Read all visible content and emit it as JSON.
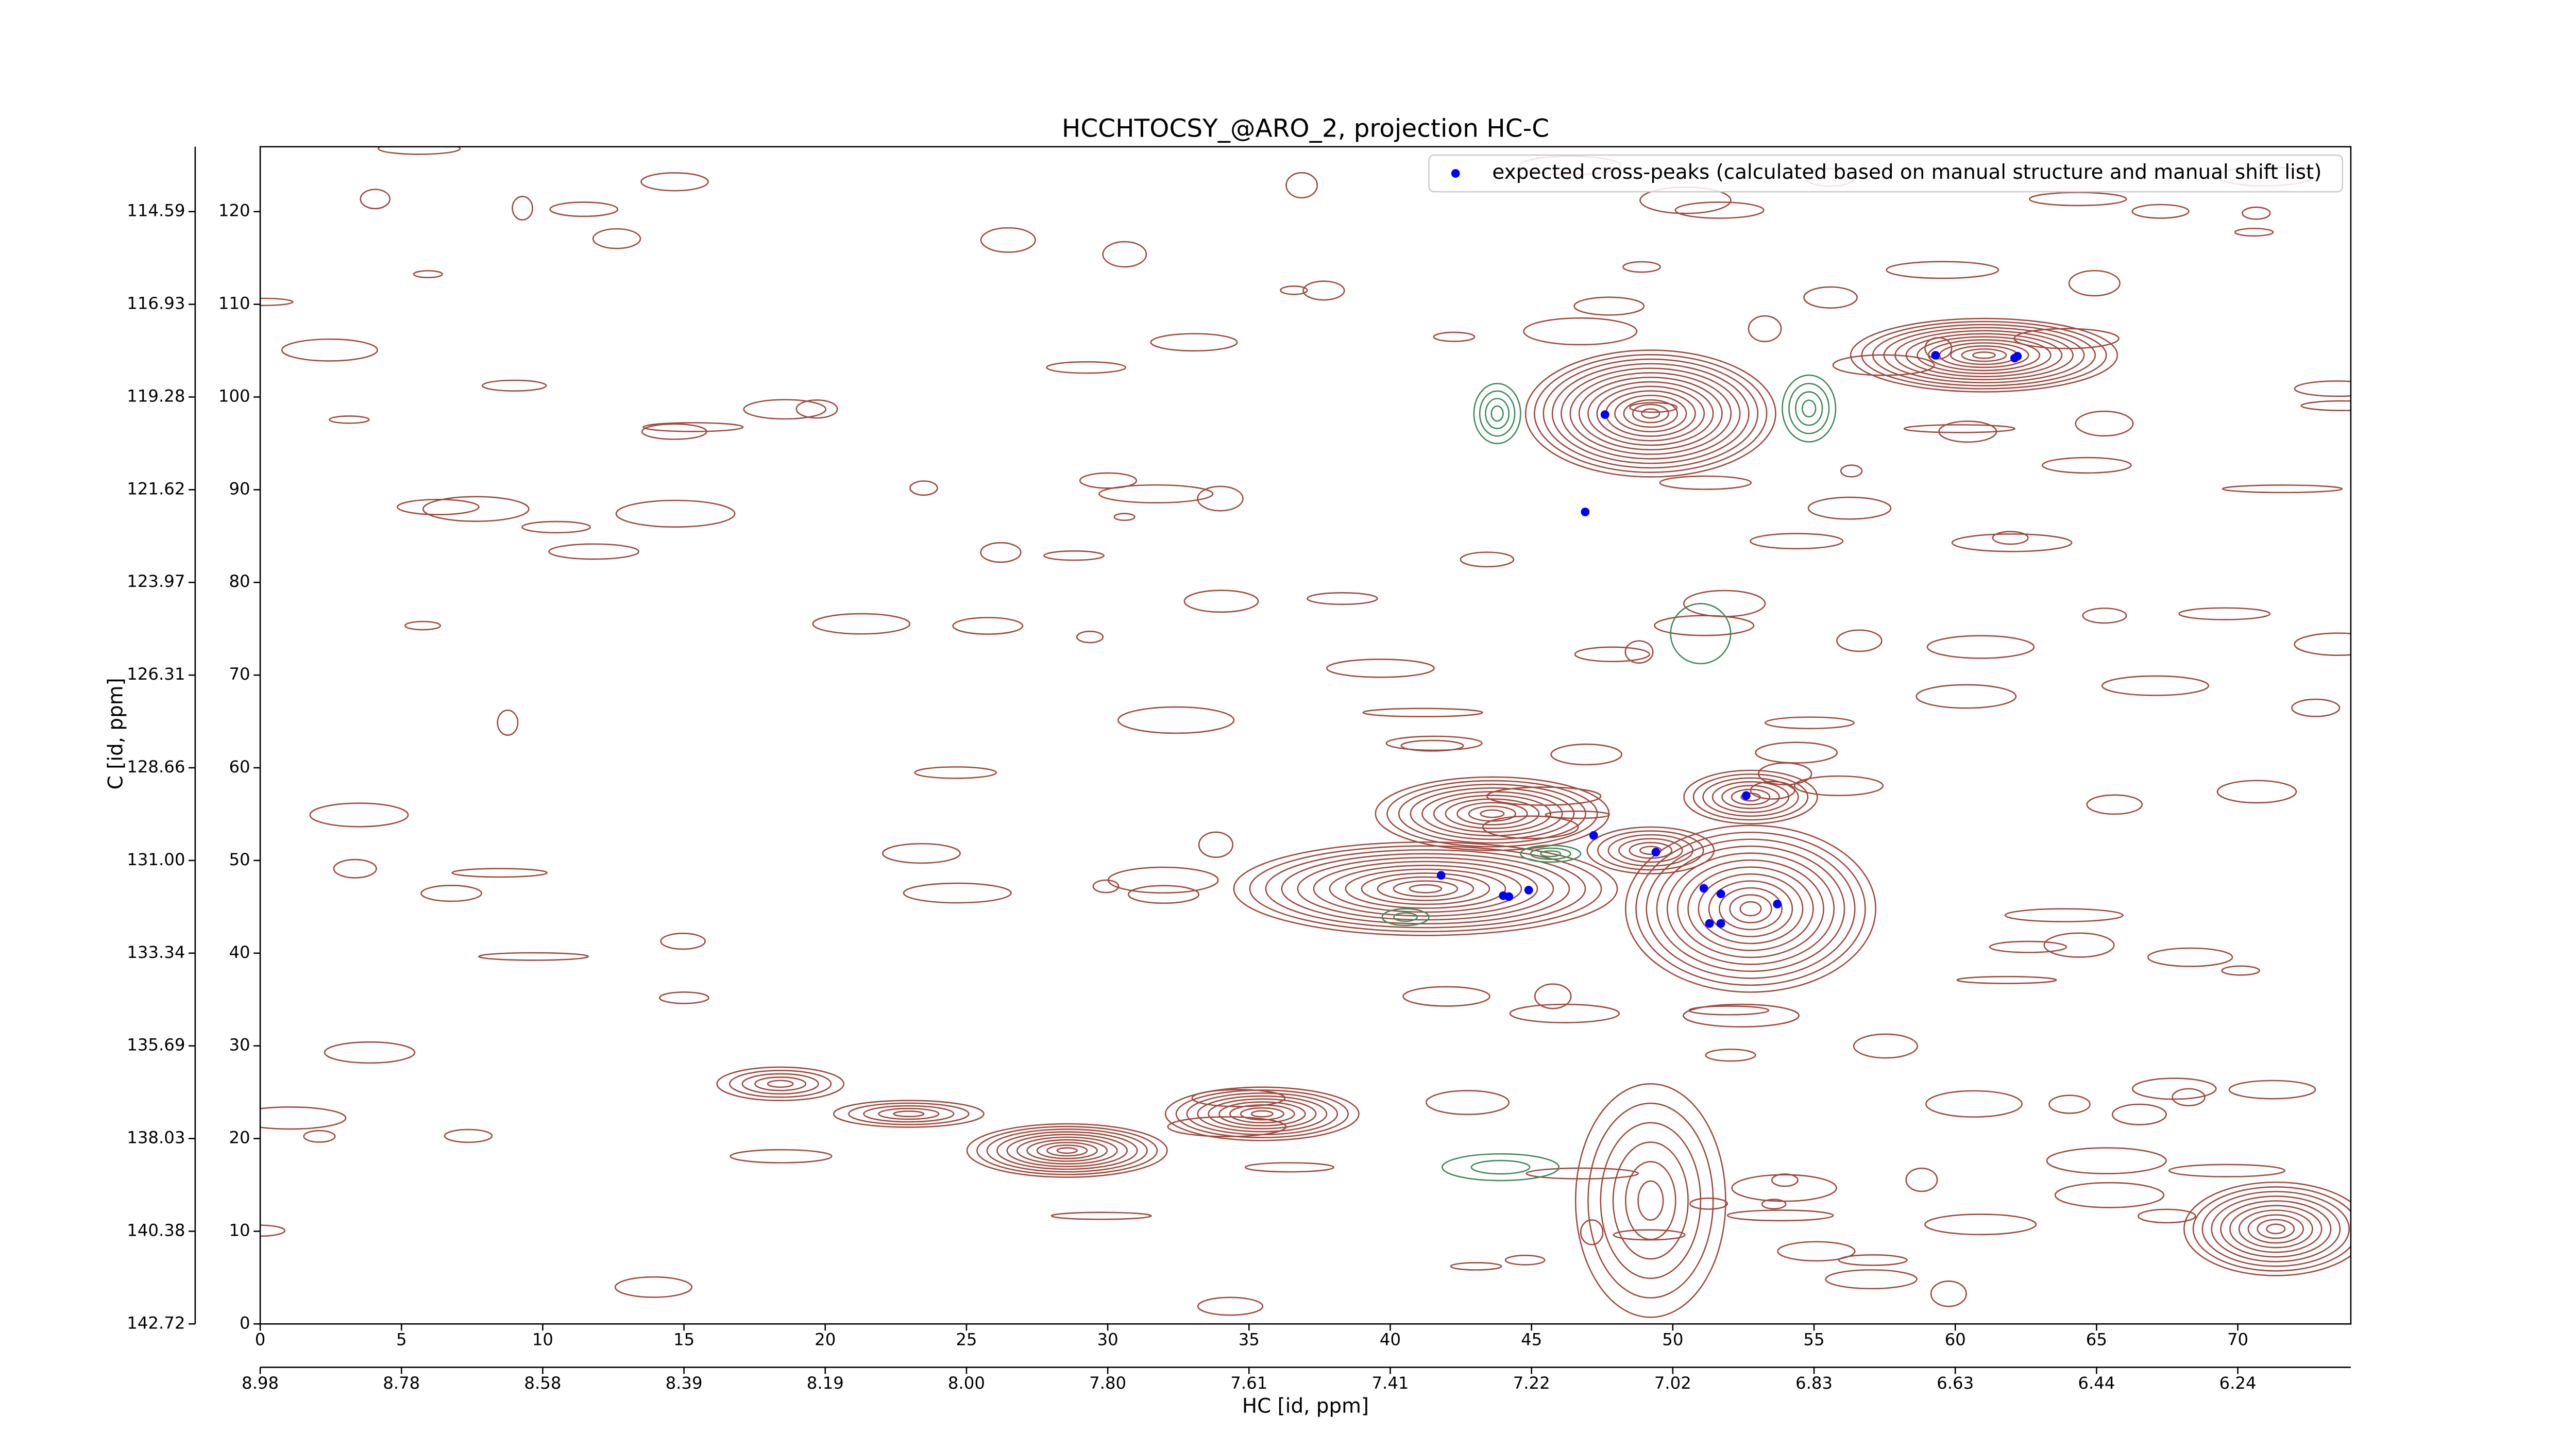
{
  "chart_data": {
    "type": "scatter",
    "title": "HCCHTOCSY_@ARO_2, projection HC-C",
    "xlabel": "HC [id, ppm]",
    "ylabel": "C [id, ppm]",
    "xlim": [
      0,
      74
    ],
    "ylim": [
      0,
      127
    ],
    "xticks": [
      0,
      5,
      10,
      15,
      20,
      25,
      30,
      35,
      40,
      45,
      50,
      55,
      60,
      65,
      70
    ],
    "yticks": [
      0,
      10,
      20,
      30,
      40,
      50,
      60,
      70,
      80,
      90,
      100,
      110,
      120
    ],
    "x2ticks": [
      {
        "value": 0,
        "label": "8.98"
      },
      {
        "value": 5,
        "label": "8.78"
      },
      {
        "value": 10,
        "label": "8.58"
      },
      {
        "value": 15,
        "label": "8.39"
      },
      {
        "value": 20,
        "label": "8.19"
      },
      {
        "value": 25,
        "label": "8.00"
      },
      {
        "value": 30,
        "label": "7.80"
      },
      {
        "value": 35,
        "label": "7.61"
      },
      {
        "value": 40,
        "label": "7.41"
      },
      {
        "value": 45,
        "label": "7.22"
      },
      {
        "value": 50,
        "label": "7.02"
      },
      {
        "value": 55,
        "label": "6.83"
      },
      {
        "value": 60,
        "label": "6.63"
      },
      {
        "value": 65,
        "label": "6.44"
      },
      {
        "value": 70,
        "label": "6.24"
      }
    ],
    "y2ticks": [
      {
        "value": 0,
        "label": "142.72"
      },
      {
        "value": 10,
        "label": "140.38"
      },
      {
        "value": 20,
        "label": "138.03"
      },
      {
        "value": 30,
        "label": "135.69"
      },
      {
        "value": 40,
        "label": "133.34"
      },
      {
        "value": 50,
        "label": "131.00"
      },
      {
        "value": 60,
        "label": "128.66"
      },
      {
        "value": 70,
        "label": "126.31"
      },
      {
        "value": 80,
        "label": "123.97"
      },
      {
        "value": 90,
        "label": "121.62"
      },
      {
        "value": 100,
        "label": "119.28"
      },
      {
        "value": 110,
        "label": "116.93"
      },
      {
        "value": 120,
        "label": "114.59"
      }
    ],
    "series": [
      {
        "name": "expected cross-peaks (calculated based on manual structure and manual shift list)",
        "color": "#0000ff",
        "x": [
          59.3,
          62.1,
          62.2,
          47.6,
          46.9,
          52.6,
          47.2,
          49.4,
          41.8,
          44.0,
          44.2,
          44.9,
          51.1,
          51.7,
          51.3,
          51.7,
          53.7
        ],
        "values": [
          104.5,
          104.2,
          104.4,
          98.1,
          87.6,
          57.0,
          52.7,
          50.9,
          48.4,
          46.2,
          46.1,
          46.8,
          47.0,
          46.4,
          43.2,
          43.2,
          45.3
        ]
      }
    ]
  }
}
